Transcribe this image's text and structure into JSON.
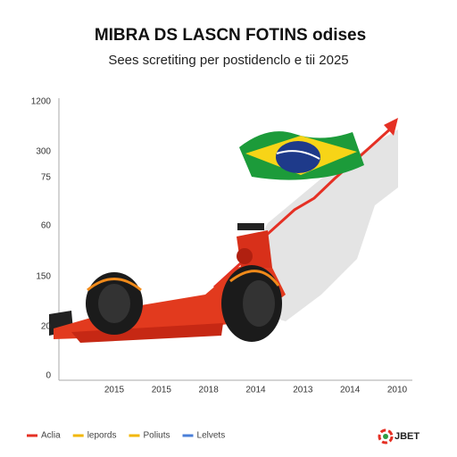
{
  "title": "MIBRA DS LASCN FOTINS odises",
  "subtitle": "Sees scretiting per postidenclo e tii 2025",
  "y_axis_labels": [
    "1200",
    "300",
    "75",
    "60",
    "150",
    "20",
    "0"
  ],
  "x_axis_labels": [
    "2015",
    "2015",
    "2018",
    "2014",
    "2013",
    "2014",
    "2010"
  ],
  "legend": [
    "Aclia",
    "lepords",
    "Poliuts",
    "Lelvets"
  ],
  "brand": "JBET"
}
